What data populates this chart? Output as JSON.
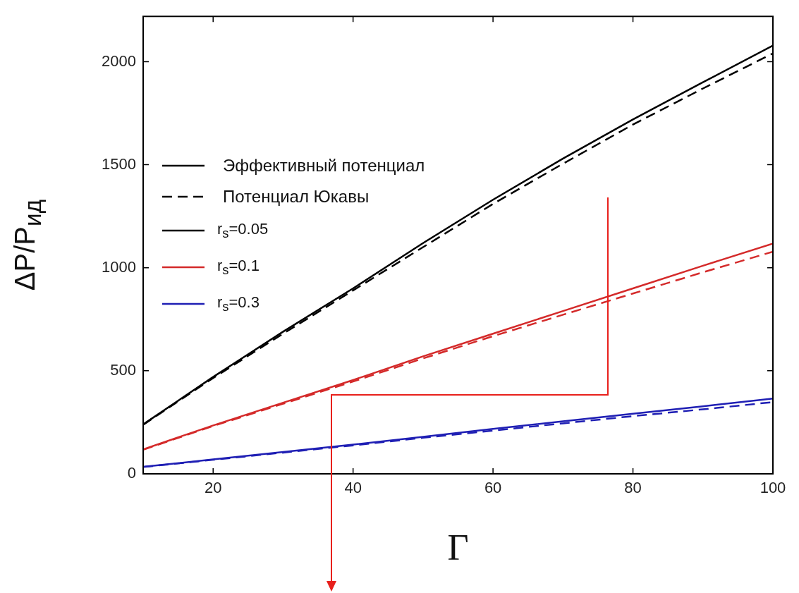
{
  "chart_data": {
    "type": "line",
    "xlabel": "Γ",
    "ylabel": "ΔP/P$_{ид}$",
    "x": [
      10,
      20,
      30,
      40,
      50,
      60,
      70,
      80,
      90,
      100
    ],
    "series": [
      {
        "name": "r$_{s}$=0.05",
        "color": "#000000",
        "line_style": "solid",
        "values": [
          240,
          470,
          690,
          900,
          1120,
          1330,
          1530,
          1720,
          1900,
          2078
        ]
      },
      {
        "color": "#000000",
        "line_style": "dashed",
        "values": [
          238,
          465,
          680,
          890,
          1100,
          1310,
          1505,
          1695,
          1870,
          2040
        ]
      },
      {
        "name": "r$_{s}$=0.1",
        "color": "#d42a2a",
        "line_style": "solid",
        "values": [
          119,
          235,
          345,
          455,
          570,
          680,
          790,
          900,
          1010,
          1117
        ]
      },
      {
        "color": "#d42a2a",
        "line_style": "dashed",
        "values": [
          117,
          232,
          340,
          448,
          560,
          668,
          772,
          875,
          978,
          1078
        ]
      },
      {
        "name": "r$_{s}$=0.3",
        "color": "#1f1fb4",
        "line_style": "solid",
        "values": [
          34,
          70,
          106,
          142,
          180,
          218,
          255,
          292,
          328,
          365
        ]
      },
      {
        "color": "#1f1fb4",
        "line_style": "dashed",
        "values": [
          33,
          68,
          103,
          138,
          175,
          210,
          245,
          280,
          313,
          348
        ]
      }
    ],
    "annotations": [
      "Эффективный потенциал",
      "Потенциал Юкавы"
    ],
    "xlim": [
      10,
      100
    ],
    "xticks": [
      20,
      40,
      60,
      80,
      100
    ],
    "ylim": [
      0,
      2220
    ],
    "yticks": [
      0,
      500,
      1000,
      1500,
      2000
    ],
    "grid": false,
    "legend": "top left",
    "marker": "none"
  }
}
